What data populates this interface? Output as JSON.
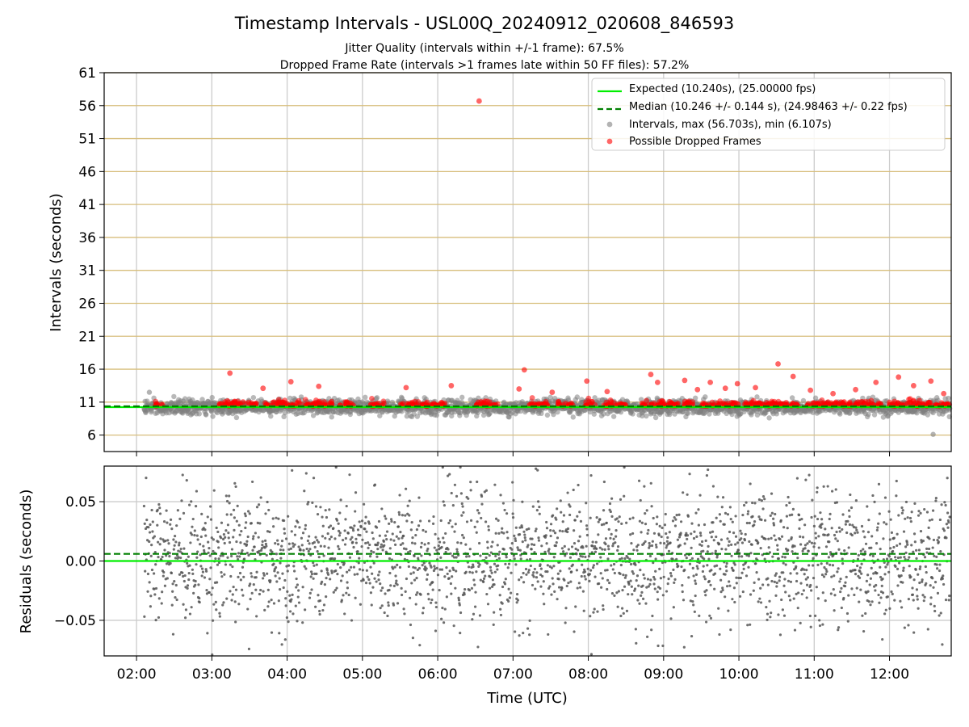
{
  "chart_data": [
    {
      "type": "scatter",
      "title": "Timestamp Intervals - USL00Q_20240912_020608_846593",
      "subtitle_lines": [
        "Jitter Quality (intervals within +/-1 frame): 67.5%",
        "Dropped Frame Rate (intervals >1 frames late within 50 FF files): 57.2%"
      ],
      "xlabel": "",
      "ylabel": "Intervals (seconds)",
      "xlim_hours": [
        1.57,
        12.82
      ],
      "ylim": [
        3.5,
        61
      ],
      "yticks": [
        6,
        11,
        16,
        21,
        26,
        31,
        36,
        41,
        46,
        51,
        56,
        61
      ],
      "ytick_labels": [
        "6",
        "11",
        "16",
        "21",
        "26",
        "31",
        "36",
        "41",
        "46",
        "51",
        "56",
        "61"
      ],
      "grid": true,
      "horizontal_gridline_color": "#d7be7c",
      "legend_position": "top-right",
      "series": [
        {
          "name": "Expected (10.240s), (25.00000 fps)",
          "kind": "line",
          "y": 10.24,
          "color": "#00ee00"
        },
        {
          "name": "Median (10.246 +/- 0.144 s), (24.98463 +/- 0.22 fps)",
          "kind": "dashed-line",
          "y": 10.246,
          "color": "#008000"
        },
        {
          "name": "Intervals, max (56.703s), min (6.107s)",
          "kind": "scatter",
          "color": "#808080",
          "start_hour": 2.1,
          "end_hour": 12.8,
          "count": 2380,
          "typical_range": [
            8.5,
            12
          ],
          "max": 56.703,
          "min": 6.107
        },
        {
          "name": "Possible Dropped Frames",
          "kind": "scatter",
          "color": "#ff0000",
          "points": [
            [
              6.55,
              56.7
            ],
            [
              10.52,
              16.8
            ],
            [
              7.15,
              15.9
            ],
            [
              3.24,
              15.4
            ],
            [
              8.83,
              15.2
            ],
            [
              12.12,
              14.8
            ],
            [
              10.72,
              14.9
            ],
            [
              4.05,
              14.1
            ],
            [
              7.98,
              14.2
            ],
            [
              8.92,
              14.0
            ],
            [
              9.28,
              14.3
            ],
            [
              9.62,
              14.0
            ],
            [
              9.98,
              13.8
            ],
            [
              11.82,
              14.0
            ],
            [
              12.55,
              14.2
            ],
            [
              3.68,
              13.1
            ],
            [
              4.42,
              13.4
            ],
            [
              5.58,
              13.2
            ],
            [
              6.18,
              13.5
            ],
            [
              7.08,
              13.0
            ],
            [
              7.52,
              12.5
            ],
            [
              8.25,
              12.6
            ],
            [
              9.45,
              12.9
            ],
            [
              9.82,
              13.1
            ],
            [
              10.22,
              13.2
            ],
            [
              10.95,
              12.8
            ],
            [
              11.25,
              12.3
            ],
            [
              11.55,
              12.9
            ],
            [
              12.32,
              13.5
            ],
            [
              12.72,
              12.3
            ]
          ]
        }
      ]
    },
    {
      "type": "scatter",
      "xlabel": "Time (UTC)",
      "ylabel": "Residuals (seconds)",
      "xlim_hours": [
        1.57,
        12.82
      ],
      "ylim": [
        -0.08,
        0.08
      ],
      "yticks": [
        -0.05,
        0.0,
        0.05
      ],
      "ytick_labels": [
        "−0.05",
        "0.00",
        "0.05"
      ],
      "xtick_hours": [
        2,
        3,
        4,
        5,
        6,
        7,
        8,
        9,
        10,
        11,
        12
      ],
      "xtick_labels": [
        "02:00",
        "03:00",
        "04:00",
        "05:00",
        "06:00",
        "07:00",
        "08:00",
        "09:00",
        "10:00",
        "11:00",
        "12:00"
      ],
      "grid": true,
      "series": [
        {
          "kind": "line",
          "y": 0.0,
          "color": "#00ee00"
        },
        {
          "kind": "dashed-line",
          "y": 0.006,
          "color": "#008000"
        },
        {
          "kind": "scatter",
          "color": "#555555",
          "start_hour": 2.1,
          "end_hour": 12.8,
          "count": 2380,
          "typical_range": [
            -0.06,
            0.06
          ]
        }
      ]
    }
  ]
}
